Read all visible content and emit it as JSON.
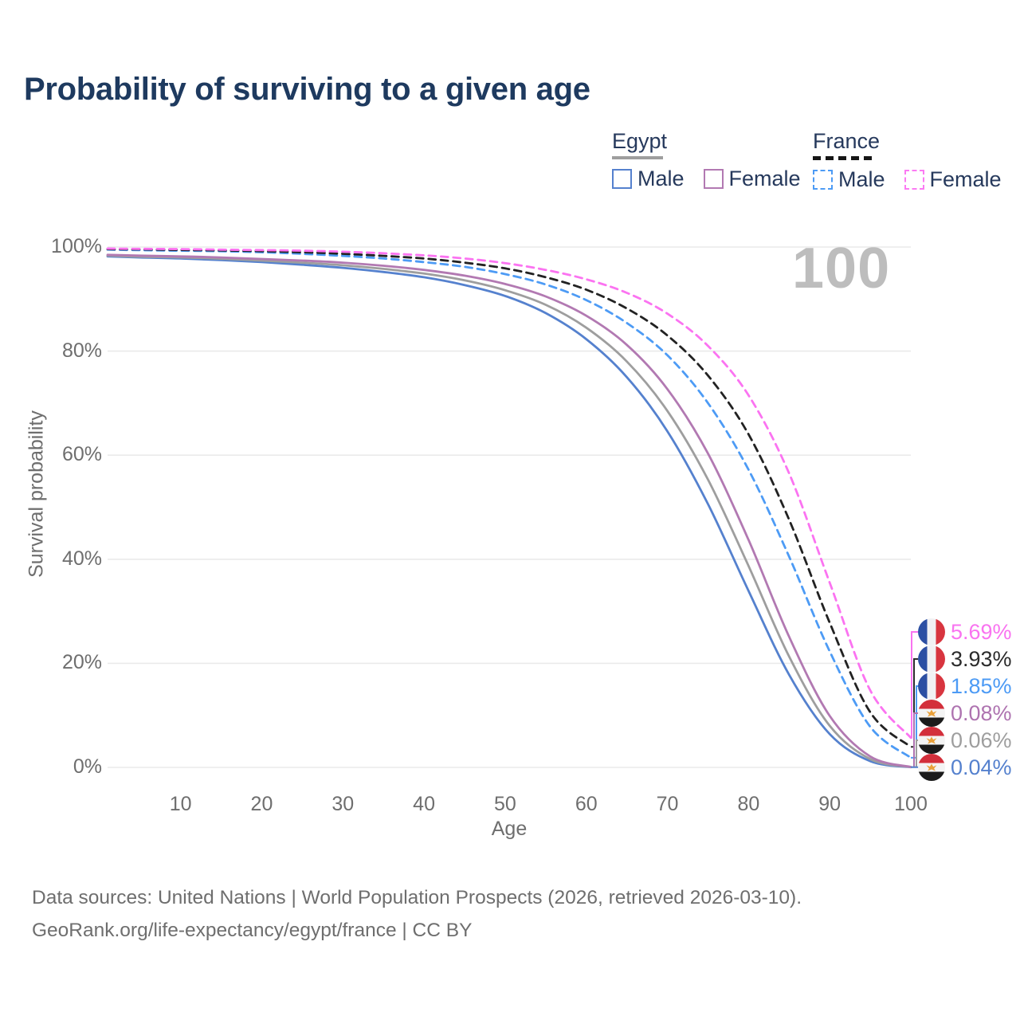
{
  "title": "Probability of surviving to a given age",
  "watermark_age_counter": "100",
  "legend": {
    "groups": [
      {
        "name": "Egypt",
        "line_style": "solid",
        "underline_color": "#9E9E9E",
        "items": [
          {
            "label": "Male",
            "color": "#5581CE"
          },
          {
            "label": "Female",
            "color": "#B279B2"
          }
        ]
      },
      {
        "name": "France",
        "line_style": "dashed",
        "underline_color": "#161616",
        "items": [
          {
            "label": "Male",
            "color": "#4D9BF5"
          },
          {
            "label": "Female",
            "color": "#FB7BF3"
          }
        ]
      }
    ]
  },
  "chart_data": {
    "type": "line",
    "title": "Probability of surviving to a given age",
    "xlabel": "Age",
    "ylabel": "Survival probability",
    "xlim": [
      1,
      100
    ],
    "ylim": [
      0,
      100
    ],
    "grid": true,
    "legend_position": "top-right",
    "x_ticks": [
      10,
      20,
      30,
      40,
      50,
      60,
      70,
      80,
      90,
      100
    ],
    "y_ticks": {
      "values": [
        0,
        20,
        40,
        60,
        80,
        100
      ],
      "labels": [
        "0%",
        "20%",
        "40%",
        "60%",
        "80%",
        "100%"
      ]
    },
    "x": [
      1,
      5,
      10,
      15,
      20,
      25,
      30,
      35,
      40,
      45,
      50,
      55,
      60,
      65,
      70,
      75,
      80,
      85,
      90,
      95,
      100
    ],
    "series": [
      {
        "name": "Egypt Male",
        "country": "Egypt",
        "sex": "Male",
        "color": "#5581CE",
        "dash": false,
        "values": [
          98.2,
          98.0,
          97.8,
          97.5,
          97.1,
          96.6,
          96.0,
          95.2,
          94.2,
          92.7,
          90.6,
          87.3,
          82.3,
          75.0,
          64.6,
          50.6,
          33.9,
          17.8,
          6.4,
          1.2,
          0.04
        ]
      },
      {
        "name": "Egypt Both sexes",
        "country": "Egypt",
        "sex": "Both",
        "color": "#9E9E9E",
        "dash": false,
        "values": [
          98.35,
          98.15,
          98.0,
          97.75,
          97.4,
          97.0,
          96.5,
          95.8,
          94.9,
          93.6,
          91.7,
          88.9,
          84.5,
          78.0,
          68.5,
          55.3,
          38.7,
          21.3,
          8.0,
          1.6,
          0.06
        ]
      },
      {
        "name": "Egypt Female",
        "country": "Egypt",
        "sex": "Female",
        "color": "#B279B2",
        "dash": false,
        "values": [
          98.5,
          98.35,
          98.2,
          98.0,
          97.7,
          97.4,
          97.0,
          96.4,
          95.6,
          94.5,
          92.9,
          90.5,
          86.8,
          81.2,
          72.7,
          60.3,
          43.7,
          25.1,
          9.9,
          2.1,
          0.08
        ]
      },
      {
        "name": "France Male",
        "country": "France",
        "sex": "Male",
        "color": "#4D9BF5",
        "dash": true,
        "values": [
          99.5,
          99.4,
          99.3,
          99.2,
          99.0,
          98.7,
          98.3,
          97.8,
          97.1,
          96.2,
          94.8,
          92.8,
          89.8,
          85.4,
          79.2,
          70.0,
          57.2,
          40.5,
          22.3,
          7.8,
          1.85
        ]
      },
      {
        "name": "France Both sexes",
        "country": "France",
        "sex": "Both",
        "color": "#222222",
        "dash": true,
        "values": [
          99.6,
          99.55,
          99.45,
          99.35,
          99.2,
          99.0,
          98.7,
          98.3,
          97.8,
          97.0,
          95.9,
          94.2,
          91.8,
          88.2,
          83.0,
          75.3,
          64.0,
          47.6,
          27.8,
          10.6,
          3.93
        ]
      },
      {
        "name": "France Female",
        "country": "France",
        "sex": "Female",
        "color": "#FB73F1",
        "dash": true,
        "values": [
          99.7,
          99.65,
          99.6,
          99.5,
          99.4,
          99.3,
          99.1,
          98.8,
          98.4,
          97.8,
          96.9,
          95.6,
          93.8,
          91.2,
          87.2,
          81.0,
          71.5,
          56.5,
          35.5,
          14.8,
          5.69
        ]
      }
    ],
    "end_labels": [
      {
        "value": "5.69%",
        "pct": 5.69,
        "flag": "france",
        "series": "France Female",
        "color": "#F973F0"
      },
      {
        "value": "3.93%",
        "pct": 3.93,
        "flag": "france",
        "series": "France Both sexes",
        "color": "#2B2B2B"
      },
      {
        "value": "1.85%",
        "pct": 1.85,
        "flag": "france",
        "series": "France Male",
        "color": "#4D9BF5"
      },
      {
        "value": "0.08%",
        "pct": 0.08,
        "flag": "egypt",
        "series": "Egypt Female",
        "color": "#AE73B0"
      },
      {
        "value": "0.06%",
        "pct": 0.06,
        "flag": "egypt",
        "series": "Egypt Both sexes",
        "color": "#9E9E9E"
      },
      {
        "value": "0.04%",
        "pct": 0.04,
        "flag": "egypt",
        "series": "Egypt Male",
        "color": "#5581CE"
      }
    ]
  },
  "footer": {
    "line1": "Data sources: United Nations | World Population Prospects (2026, retrieved 2026-03-10).",
    "line2": "GeoRank.org/life-expectancy/egypt/france | CC BY"
  }
}
